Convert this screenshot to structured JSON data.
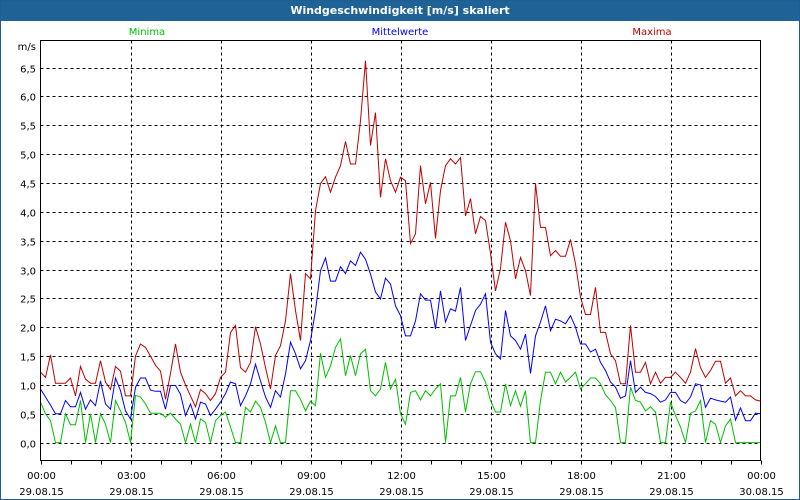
{
  "window": {
    "title": "Windgeschwindigkeit [m/s] skaliert"
  },
  "colors": {
    "title_bar": "#1f6396",
    "minima": "#00c000",
    "mittelwerte": "#0000ff",
    "maxima": "#c00000",
    "grid": "#000000"
  },
  "chart_data": {
    "type": "line",
    "title": "Windgeschwindigkeit [m/s] skaliert",
    "ylabel": "m/s",
    "xlabel": "",
    "grid": true,
    "legend_position": "top",
    "ylim": [
      -0.31,
      6.97
    ],
    "xlim_minutes": [
      0,
      1440
    ],
    "x_step_minutes": 10,
    "y_ticks": [
      "0,0",
      "0,5",
      "1,0",
      "1,5",
      "2,0",
      "2,5",
      "3,0",
      "3,5",
      "4,0",
      "4,5",
      "5,0",
      "5,5",
      "6,0",
      "6,5"
    ],
    "y_tick_values": [
      0,
      0.5,
      1,
      1.5,
      2,
      2.5,
      3,
      3.5,
      4,
      4.5,
      5,
      5.5,
      6,
      6.5
    ],
    "x_ticks": [
      {
        "time": "00:00",
        "date": "29.08.15",
        "minute": 0
      },
      {
        "time": "03:00",
        "date": "29.08.15",
        "minute": 180
      },
      {
        "time": "06:00",
        "date": "29.08.15",
        "minute": 360
      },
      {
        "time": "09:00",
        "date": "29.08.15",
        "minute": 540
      },
      {
        "time": "12:00",
        "date": "29.08.15",
        "minute": 720
      },
      {
        "time": "15:00",
        "date": "29.08.15",
        "minute": 900
      },
      {
        "time": "18:00",
        "date": "29.08.15",
        "minute": 1080
      },
      {
        "time": "21:00",
        "date": "29.08.15",
        "minute": 1260
      },
      {
        "time": "00:00",
        "date": "30.08.15",
        "minute": 1440
      }
    ],
    "series": [
      {
        "name": "Minima",
        "color": "#00c000",
        "values": [
          0.7,
          0.5,
          0.38,
          0,
          0,
          0.5,
          0.31,
          0.31,
          0.73,
          0,
          0.5,
          0,
          0.5,
          0.32,
          0,
          0.73,
          0.55,
          0.35,
          0,
          0.82,
          0.79,
          0.67,
          0.51,
          0.51,
          0.51,
          0.44,
          0.51,
          0.41,
          0.32,
          0,
          0.32,
          0,
          0.41,
          0.35,
          0,
          0.38,
          0.47,
          0.53,
          0.27,
          0,
          0,
          0.61,
          0.53,
          0.72,
          0.61,
          0.35,
          0,
          0.29,
          0,
          0,
          0.9,
          0.9,
          0.75,
          0.55,
          0.72,
          0.64,
          1.55,
          1.13,
          1.33,
          1.65,
          1.8,
          1.16,
          1.51,
          1.16,
          1.54,
          1.62,
          0.9,
          0.81,
          0.93,
          1.39,
          0.93,
          1.1,
          0.5,
          0.32,
          0.87,
          0.9,
          0.74,
          0.9,
          0.81,
          0.93,
          1.02,
          0,
          0.81,
          0.81,
          1.13,
          0.53,
          1.02,
          1.23,
          1.23,
          1.05,
          0.73,
          0.53,
          0.53,
          1.02,
          0.64,
          0.9,
          0.63,
          0.9,
          0,
          0,
          0.73,
          1.22,
          1.22,
          1.02,
          1.22,
          1.05,
          1.13,
          1.22,
          0.93,
          1.02,
          1.12,
          1.12,
          1.02,
          0.83,
          0.73,
          0.61,
          0,
          0,
          0.96,
          0.73,
          0.7,
          0.55,
          0.62,
          0.53,
          0,
          0,
          0.7,
          0.47,
          0.27,
          0,
          0.51,
          0.55,
          0.73,
          0,
          0.38,
          0.32,
          0,
          0.29,
          0.41,
          0,
          0,
          0,
          0,
          0,
          0
        ]
      },
      {
        "name": "Mittelwerte",
        "color": "#0000ff",
        "values": [
          0.93,
          0.79,
          0.65,
          0.5,
          0.5,
          0.73,
          0.62,
          0.62,
          0.87,
          0.58,
          0.74,
          0.64,
          1.07,
          0.67,
          0.58,
          1.12,
          0.9,
          0.55,
          0.41,
          0.96,
          1.12,
          1.12,
          0.91,
          0.89,
          0.89,
          0.58,
          0.99,
          0.99,
          0.84,
          0.47,
          0.67,
          0.41,
          0.7,
          0.67,
          0.47,
          0.58,
          0.7,
          0.85,
          1.05,
          1.02,
          0.64,
          0.81,
          1.02,
          1.36,
          1.07,
          0.79,
          0.61,
          0.9,
          0.79,
          1.19,
          1.74,
          1.54,
          1.28,
          1.42,
          1.77,
          2.29,
          2.98,
          3.2,
          2.8,
          2.8,
          3.05,
          2.93,
          3.15,
          3.07,
          3.3,
          3.18,
          2.92,
          2.61,
          2.49,
          2.85,
          2.75,
          2.37,
          2.2,
          1.85,
          1.85,
          2.11,
          2.58,
          2.47,
          2.47,
          1.97,
          2.63,
          2.09,
          2.32,
          2.28,
          2.69,
          1.77,
          2.03,
          2.29,
          2.4,
          2.58,
          1.74,
          1.54,
          1.45,
          2.29,
          1.85,
          1.77,
          1.62,
          1.88,
          1.2,
          1.85,
          2.09,
          2.37,
          1.94,
          2.14,
          2.11,
          2.06,
          2.2,
          2.0,
          1.71,
          1.71,
          1.57,
          1.62,
          1.39,
          1.25,
          1.05,
          0.96,
          0.77,
          0.81,
          1.42,
          0.87,
          0.96,
          0.87,
          0.85,
          0.8,
          0.7,
          0.74,
          0.87,
          0.87,
          0.73,
          0.68,
          0.79,
          1.02,
          1.0,
          0.61,
          0.77,
          0.74,
          0.72,
          0.7,
          0.79,
          0.39,
          0.6,
          0.38,
          0.38,
          0.51,
          0.5
        ]
      },
      {
        "name": "Maxima",
        "color": "#c00000",
        "values": [
          1.22,
          1.13,
          1.52,
          1.03,
          1.03,
          1.03,
          1.12,
          0.81,
          1.32,
          1.1,
          1.03,
          1.03,
          1.42,
          1.05,
          0.92,
          1.32,
          1.24,
          0.81,
          0.81,
          1.5,
          1.71,
          1.65,
          1.5,
          1.34,
          1.24,
          0.75,
          1.2,
          1.71,
          1.22,
          1.0,
          0.81,
          0.62,
          0.92,
          0.85,
          0.73,
          0.85,
          1.13,
          1.22,
          1.91,
          2.03,
          1.3,
          1.22,
          1.39,
          2.01,
          1.71,
          1.3,
          0.93,
          1.51,
          1.68,
          2.11,
          2.93,
          2.29,
          1.77,
          2.93,
          2.84,
          4.02,
          4.49,
          4.61,
          4.34,
          4.6,
          4.8,
          5.22,
          4.83,
          4.83,
          5.58,
          6.62,
          5.15,
          5.72,
          4.25,
          4.92,
          4.54,
          4.34,
          4.6,
          4.54,
          3.45,
          3.62,
          4.8,
          4.14,
          4.51,
          3.54,
          4.37,
          4.8,
          4.92,
          4.83,
          4.94,
          3.93,
          4.23,
          3.62,
          3.92,
          3.85,
          3.28,
          2.63,
          3.02,
          3.82,
          3.5,
          2.84,
          3.21,
          2.98,
          2.55,
          4.49,
          3.73,
          3.73,
          3.24,
          3.33,
          3.23,
          3.23,
          3.52,
          3.1,
          2.52,
          2.22,
          2.22,
          2.69,
          1.91,
          1.91,
          1.54,
          1.42,
          1.02,
          1.02,
          2.03,
          1.22,
          1.22,
          1.39,
          1.02,
          1.22,
          1.03,
          1.13,
          1.13,
          1.22,
          1.13,
          1.03,
          1.22,
          1.63,
          1.3,
          1.13,
          1.25,
          1.41,
          1.41,
          1.03,
          1.12,
          0.81,
          0.9,
          0.81,
          0.81,
          0.74,
          0.72
        ]
      }
    ]
  }
}
